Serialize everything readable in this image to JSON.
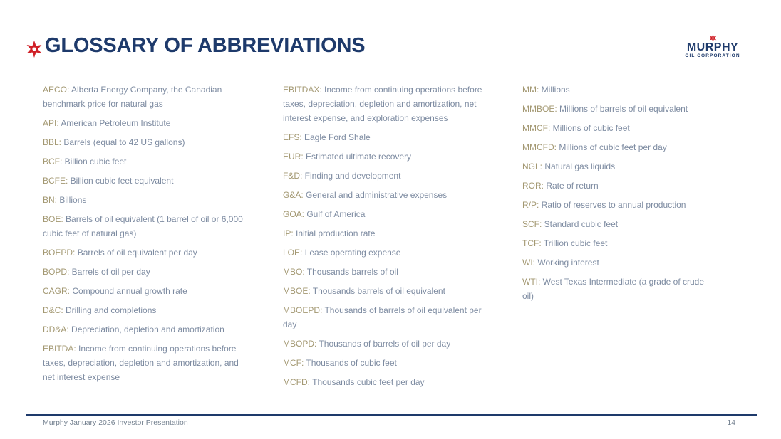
{
  "header": {
    "title": "GLOSSARY OF ABBREVIATIONS",
    "logo": {
      "name": "MURPHY",
      "subtitle": "OIL CORPORATION"
    }
  },
  "colors": {
    "navy": "#1e3a6b",
    "red": "#d02027",
    "gold": "#a39872",
    "slate": "#7d8ba1"
  },
  "columns": [
    {
      "entries": [
        {
          "term": "AECO",
          "definition": "Alberta Energy Company, the Canadian benchmark price for natural gas"
        },
        {
          "term": "API",
          "definition": "American Petroleum Institute"
        },
        {
          "term": "BBL",
          "definition": "Barrels (equal to 42 US gallons)"
        },
        {
          "term": "BCF",
          "definition": "Billion cubic feet"
        },
        {
          "term": "BCFE",
          "definition": "Billion cubic feet equivalent"
        },
        {
          "term": "BN",
          "definition": "Billions"
        },
        {
          "term": "BOE",
          "definition": "Barrels of oil equivalent (1 barrel of oil or 6,000 cubic feet of natural gas)"
        },
        {
          "term": "BOEPD",
          "definition": "Barrels of oil equivalent per day"
        },
        {
          "term": "BOPD",
          "definition": "Barrels of oil per day"
        },
        {
          "term": "CAGR",
          "definition": "Compound annual growth rate"
        },
        {
          "term": "D&C",
          "definition": "Drilling and completions"
        },
        {
          "term": "DD&A",
          "definition": "Depreciation, depletion and amortization"
        },
        {
          "term": "EBITDA",
          "definition": "Income from continuing operations before taxes, depreciation, depletion and amortization, and net interest expense"
        }
      ]
    },
    {
      "entries": [
        {
          "term": "EBITDAX",
          "definition": "Income from continuing operations before taxes, depreciation, depletion and amortization, net interest expense, and exploration expenses"
        },
        {
          "term": "EFS",
          "definition": "Eagle Ford Shale"
        },
        {
          "term": "EUR",
          "definition": "Estimated ultimate recovery"
        },
        {
          "term": "F&D",
          "definition": "Finding and development"
        },
        {
          "term": "G&A",
          "definition": "General and administrative expenses"
        },
        {
          "term": "GOA",
          "definition": "Gulf of America"
        },
        {
          "term": "IP",
          "definition": "Initial production rate"
        },
        {
          "term": "LOE",
          "definition": "Lease operating expense"
        },
        {
          "term": "MBO",
          "definition": "Thousands barrels of oil"
        },
        {
          "term": "MBOE",
          "definition": "Thousands barrels of oil equivalent"
        },
        {
          "term": "MBOEPD",
          "definition": "Thousands of barrels of oil equivalent per day"
        },
        {
          "term": "MBOPD",
          "definition": "Thousands of barrels of oil per day"
        },
        {
          "term": "MCF",
          "definition": "Thousands of cubic feet"
        },
        {
          "term": "MCFD",
          "definition": "Thousands cubic feet per day"
        }
      ]
    },
    {
      "entries": [
        {
          "term": "MM",
          "definition": "Millions"
        },
        {
          "term": "MMBOE",
          "definition": "Millions of barrels of oil equivalent"
        },
        {
          "term": "MMCF",
          "definition": "Millions of cubic feet"
        },
        {
          "term": "MMCFD",
          "definition": "Millions of cubic feet per day"
        },
        {
          "term": "NGL",
          "definition": "Natural gas liquids"
        },
        {
          "term": "ROR",
          "definition": "Rate of return"
        },
        {
          "term": "R/P",
          "definition": "Ratio of reserves to annual production"
        },
        {
          "term": "SCF",
          "definition": "Standard cubic feet"
        },
        {
          "term": "TCF",
          "definition": "Trillion cubic feet"
        },
        {
          "term": "WI",
          "definition": "Working interest"
        },
        {
          "term": "WTI",
          "definition": "West Texas Intermediate (a grade of crude oil)"
        }
      ]
    }
  ],
  "footer": {
    "left": "Murphy January 2026 Investor Presentation",
    "page_number": "14"
  }
}
